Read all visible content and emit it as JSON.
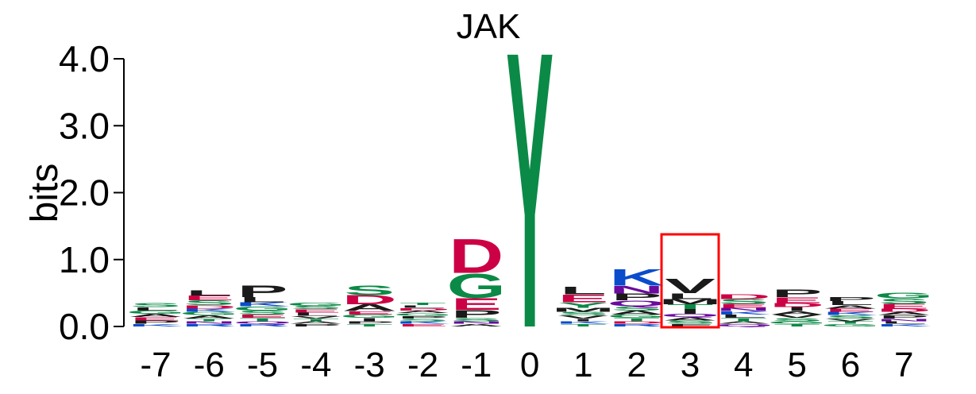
{
  "chart_data": {
    "type": "sequence-logo",
    "title": "JAK",
    "ylabel": "bits",
    "ylim": [
      0,
      4.0
    ],
    "yticks": [
      "0.0",
      "1.0",
      "2.0",
      "3.0",
      "4.0"
    ],
    "positions": [
      "-7",
      "-6",
      "-5",
      "-4",
      "-3",
      "-2",
      "-1",
      "0",
      "1",
      "2",
      "3",
      "4",
      "5",
      "6",
      "7"
    ],
    "highlight_position": "3",
    "highlight_color": "#ff0000",
    "colors": {
      "acidic": "#cc0044",
      "polar": "#0a8a46",
      "basic": "#0a4ccc",
      "hydrophobic": "#1a1a1a",
      "amide": "#6a0a9e"
    },
    "columns": [
      [
        {
          "aa": "S",
          "bits": 0.06,
          "color": "#0a8a46"
        },
        {
          "aa": "P",
          "bits": 0.05,
          "color": "#1a1a1a"
        },
        {
          "aa": "E",
          "bits": 0.05,
          "color": "#cc0044"
        },
        {
          "aa": "A",
          "bits": 0.05,
          "color": "#1a1a1a"
        },
        {
          "aa": "G",
          "bits": 0.05,
          "color": "#0a8a46"
        },
        {
          "aa": "L",
          "bits": 0.05,
          "color": "#1a1a1a"
        },
        {
          "aa": "K",
          "bits": 0.04,
          "color": "#0a4ccc"
        }
      ],
      [
        {
          "aa": "L",
          "bits": 0.08,
          "color": "#1a1a1a"
        },
        {
          "aa": "S",
          "bits": 0.07,
          "color": "#0a8a46"
        },
        {
          "aa": "E",
          "bits": 0.07,
          "color": "#cc0044"
        },
        {
          "aa": "A",
          "bits": 0.05,
          "color": "#1a1a1a"
        },
        {
          "aa": "G",
          "bits": 0.05,
          "color": "#0a8a46"
        },
        {
          "aa": "K",
          "bits": 0.05,
          "color": "#0a4ccc"
        },
        {
          "aa": "D",
          "bits": 0.05,
          "color": "#cc0044"
        },
        {
          "aa": "R",
          "bits": 0.04,
          "color": "#0a4ccc"
        },
        {
          "aa": "N",
          "bits": 0.04,
          "color": "#6a0a9e"
        },
        {
          "aa": "T",
          "bits": 0.04,
          "color": "#0a8a46"
        }
      ],
      [
        {
          "aa": "P",
          "bits": 0.18,
          "color": "#1a1a1a"
        },
        {
          "aa": "L",
          "bits": 0.08,
          "color": "#1a1a1a"
        },
        {
          "aa": "S",
          "bits": 0.06,
          "color": "#0a8a46"
        },
        {
          "aa": "G",
          "bits": 0.06,
          "color": "#0a8a46"
        },
        {
          "aa": "K",
          "bits": 0.06,
          "color": "#0a4ccc"
        },
        {
          "aa": "T",
          "bits": 0.05,
          "color": "#0a8a46"
        },
        {
          "aa": "E",
          "bits": 0.05,
          "color": "#cc0044"
        },
        {
          "aa": "R",
          "bits": 0.04,
          "color": "#0a4ccc"
        },
        {
          "aa": "Q",
          "bits": 0.04,
          "color": "#6a0a9e"
        }
      ],
      [
        {
          "aa": "L",
          "bits": 0.05,
          "color": "#1a1a1a"
        },
        {
          "aa": "E",
          "bits": 0.05,
          "color": "#cc0044"
        },
        {
          "aa": "S",
          "bits": 0.05,
          "color": "#0a8a46"
        },
        {
          "aa": "G",
          "bits": 0.05,
          "color": "#0a8a46"
        },
        {
          "aa": "P",
          "bits": 0.04,
          "color": "#1a1a1a"
        },
        {
          "aa": "A",
          "bits": 0.04,
          "color": "#1a1a1a"
        },
        {
          "aa": "T",
          "bits": 0.04,
          "color": "#0a8a46"
        },
        {
          "aa": "V",
          "bits": 0.04,
          "color": "#1a1a1a"
        }
      ],
      [
        {
          "aa": "S",
          "bits": 0.15,
          "color": "#0a8a46"
        },
        {
          "aa": "D",
          "bits": 0.14,
          "color": "#cc0044"
        },
        {
          "aa": "A",
          "bits": 0.1,
          "color": "#1a1a1a"
        },
        {
          "aa": "I",
          "bits": 0.05,
          "color": "#1a1a1a"
        },
        {
          "aa": "G",
          "bits": 0.05,
          "color": "#0a8a46"
        },
        {
          "aa": "E",
          "bits": 0.05,
          "color": "#cc0044"
        },
        {
          "aa": "T",
          "bits": 0.04,
          "color": "#0a8a46"
        },
        {
          "aa": "P",
          "bits": 0.04,
          "color": "#1a1a1a"
        }
      ],
      [
        {
          "aa": "E",
          "bits": 0.04,
          "color": "#cc0044"
        },
        {
          "aa": "K",
          "bits": 0.04,
          "color": "#0a4ccc"
        },
        {
          "aa": "S",
          "bits": 0.04,
          "color": "#0a8a46"
        },
        {
          "aa": "P",
          "bits": 0.04,
          "color": "#1a1a1a"
        },
        {
          "aa": "G",
          "bits": 0.04,
          "color": "#0a8a46"
        },
        {
          "aa": "A",
          "bits": 0.04,
          "color": "#1a1a1a"
        },
        {
          "aa": "D",
          "bits": 0.04,
          "color": "#cc0044"
        },
        {
          "aa": "L",
          "bits": 0.04,
          "color": "#1a1a1a"
        },
        {
          "aa": "T",
          "bits": 0.04,
          "color": "#0a8a46"
        }
      ],
      [
        {
          "aa": "D",
          "bits": 0.52,
          "color": "#cc0044"
        },
        {
          "aa": "G",
          "bits": 0.37,
          "color": "#0a8a46"
        },
        {
          "aa": "E",
          "bits": 0.18,
          "color": "#cc0044"
        },
        {
          "aa": "P",
          "bits": 0.12,
          "color": "#1a1a1a"
        },
        {
          "aa": "S",
          "bits": 0.05,
          "color": "#0a8a46"
        },
        {
          "aa": "A",
          "bits": 0.04,
          "color": "#1a1a1a"
        },
        {
          "aa": "N",
          "bits": 0.04,
          "color": "#6a0a9e"
        }
      ],
      [
        {
          "aa": "Y",
          "bits": 4.25,
          "color": "#0a8a46"
        }
      ],
      [
        {
          "aa": "E",
          "bits": 0.12,
          "color": "#cc0044"
        },
        {
          "aa": "L",
          "bits": 0.12,
          "color": "#1a1a1a"
        },
        {
          "aa": "Y",
          "bits": 0.08,
          "color": "#0a8a46"
        },
        {
          "aa": "M",
          "bits": 0.06,
          "color": "#1a1a1a"
        },
        {
          "aa": "V",
          "bits": 0.05,
          "color": "#1a1a1a"
        },
        {
          "aa": "S",
          "bits": 0.05,
          "color": "#0a8a46"
        },
        {
          "aa": "T",
          "bits": 0.04,
          "color": "#0a8a46"
        },
        {
          "aa": "K",
          "bits": 0.04,
          "color": "#0a4ccc"
        },
        {
          "aa": "I",
          "bits": 0.04,
          "color": "#1a1a1a"
        }
      ],
      [
        {
          "aa": "K",
          "bits": 0.25,
          "color": "#0a4ccc"
        },
        {
          "aa": "N",
          "bits": 0.12,
          "color": "#6a0a9e"
        },
        {
          "aa": "P",
          "bits": 0.1,
          "color": "#1a1a1a"
        },
        {
          "aa": "Q",
          "bits": 0.09,
          "color": "#6a0a9e"
        },
        {
          "aa": "A",
          "bits": 0.06,
          "color": "#1a1a1a"
        },
        {
          "aa": "S",
          "bits": 0.06,
          "color": "#0a8a46"
        },
        {
          "aa": "T",
          "bits": 0.05,
          "color": "#0a8a46"
        },
        {
          "aa": "G",
          "bits": 0.05,
          "color": "#0a8a46"
        },
        {
          "aa": "R",
          "bits": 0.04,
          "color": "#0a4ccc"
        },
        {
          "aa": "D",
          "bits": 0.04,
          "color": "#cc0044"
        }
      ],
      [
        {
          "aa": "V",
          "bits": 0.22,
          "color": "#1a1a1a"
        },
        {
          "aa": "L",
          "bits": 0.09,
          "color": "#1a1a1a"
        },
        {
          "aa": "M",
          "bits": 0.08,
          "color": "#1a1a1a"
        },
        {
          "aa": "I",
          "bits": 0.07,
          "color": "#1a1a1a"
        },
        {
          "aa": "T",
          "bits": 0.07,
          "color": "#0a8a46"
        },
        {
          "aa": "S",
          "bits": 0.05,
          "color": "#0a8a46"
        },
        {
          "aa": "A",
          "bits": 0.05,
          "color": "#1a1a1a"
        },
        {
          "aa": "Q",
          "bits": 0.05,
          "color": "#6a0a9e"
        },
        {
          "aa": "F",
          "bits": 0.04,
          "color": "#1a1a1a"
        }
      ],
      [
        {
          "aa": "S",
          "bits": 0.07,
          "color": "#0a8a46"
        },
        {
          "aa": "D",
          "bits": 0.07,
          "color": "#cc0044"
        },
        {
          "aa": "E",
          "bits": 0.06,
          "color": "#cc0044"
        },
        {
          "aa": "T",
          "bits": 0.05,
          "color": "#0a8a46"
        },
        {
          "aa": "L",
          "bits": 0.05,
          "color": "#1a1a1a"
        },
        {
          "aa": "K",
          "bits": 0.05,
          "color": "#0a4ccc"
        },
        {
          "aa": "N",
          "bits": 0.05,
          "color": "#6a0a9e"
        },
        {
          "aa": "Q",
          "bits": 0.04,
          "color": "#6a0a9e"
        },
        {
          "aa": "A",
          "bits": 0.04,
          "color": "#1a1a1a"
        }
      ],
      [
        {
          "aa": "P",
          "bits": 0.12,
          "color": "#1a1a1a"
        },
        {
          "aa": "E",
          "bits": 0.09,
          "color": "#cc0044"
        },
        {
          "aa": "I",
          "bits": 0.06,
          "color": "#1a1a1a"
        },
        {
          "aa": "D",
          "bits": 0.06,
          "color": "#cc0044"
        },
        {
          "aa": "S",
          "bits": 0.05,
          "color": "#0a8a46"
        },
        {
          "aa": "V",
          "bits": 0.05,
          "color": "#1a1a1a"
        },
        {
          "aa": "A",
          "bits": 0.05,
          "color": "#1a1a1a"
        },
        {
          "aa": "T",
          "bits": 0.04,
          "color": "#0a8a46"
        },
        {
          "aa": "G",
          "bits": 0.04,
          "color": "#0a8a46"
        }
      ],
      [
        {
          "aa": "L",
          "bits": 0.06,
          "color": "#1a1a1a"
        },
        {
          "aa": "P",
          "bits": 0.06,
          "color": "#1a1a1a"
        },
        {
          "aa": "S",
          "bits": 0.05,
          "color": "#0a8a46"
        },
        {
          "aa": "K",
          "bits": 0.05,
          "color": "#0a4ccc"
        },
        {
          "aa": "E",
          "bits": 0.05,
          "color": "#cc0044"
        },
        {
          "aa": "A",
          "bits": 0.05,
          "color": "#1a1a1a"
        },
        {
          "aa": "G",
          "bits": 0.04,
          "color": "#0a8a46"
        },
        {
          "aa": "T",
          "bits": 0.04,
          "color": "#0a8a46"
        },
        {
          "aa": "V",
          "bits": 0.04,
          "color": "#1a1a1a"
        }
      ],
      [
        {
          "aa": "G",
          "bits": 0.09,
          "color": "#0a8a46"
        },
        {
          "aa": "S",
          "bits": 0.08,
          "color": "#0a8a46"
        },
        {
          "aa": "E",
          "bits": 0.07,
          "color": "#cc0044"
        },
        {
          "aa": "P",
          "bits": 0.05,
          "color": "#1a1a1a"
        },
        {
          "aa": "A",
          "bits": 0.05,
          "color": "#1a1a1a"
        },
        {
          "aa": "D",
          "bits": 0.05,
          "color": "#cc0044"
        },
        {
          "aa": "K",
          "bits": 0.04,
          "color": "#0a4ccc"
        },
        {
          "aa": "L",
          "bits": 0.04,
          "color": "#1a1a1a"
        },
        {
          "aa": "N",
          "bits": 0.04,
          "color": "#6a0a9e"
        }
      ]
    ]
  }
}
